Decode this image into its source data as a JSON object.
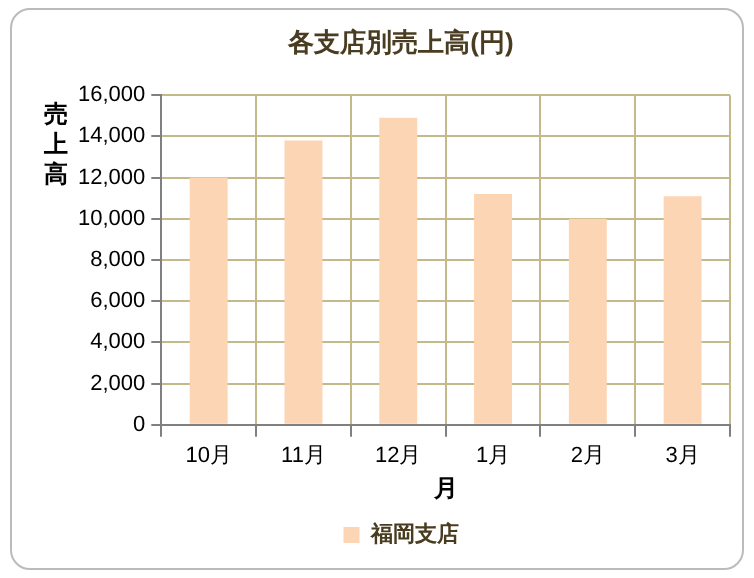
{
  "chart_data": {
    "type": "bar",
    "title": "各支店別売上高(円)",
    "xlabel": "月",
    "ylabel": "売上高",
    "categories": [
      "10月",
      "11月",
      "12月",
      "1月",
      "2月",
      "3月"
    ],
    "series": [
      {
        "name": "福岡支店",
        "color": "#fcd5b4",
        "values": [
          12000,
          13800,
          14900,
          11200,
          10000,
          11100
        ]
      }
    ],
    "ylim": [
      0,
      16000
    ],
    "yticks": [
      0,
      {
        "value": 2000,
        "label": "2,000"
      },
      {
        "value": 4000,
        "label": "4,000"
      },
      {
        "value": 6000,
        "label": "6,000"
      },
      {
        "value": 8000,
        "label": "8,000"
      },
      {
        "value": 10000,
        "label": "10,000"
      },
      {
        "value": 12000,
        "label": "12,000"
      },
      {
        "value": 14000,
        "label": "14,000"
      },
      {
        "value": 16000,
        "label": "16,000"
      }
    ],
    "grid": true,
    "legend": "bottom"
  }
}
